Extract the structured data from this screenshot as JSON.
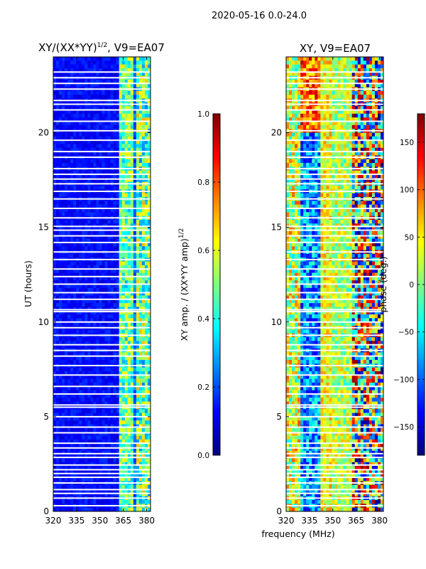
{
  "suptitle": "2020-05-16 0.0-24.0",
  "colors": {
    "jet": [
      "#00007f",
      "#0000ff",
      "#007fff",
      "#00ffff",
      "#7fff7f",
      "#ffff00",
      "#ff7f00",
      "#ff0000",
      "#7f0000"
    ],
    "blank_row": "#ffffff",
    "axis": "#000000"
  },
  "chart_data": [
    {
      "type": "heatmap",
      "title_main": "XY/(XX*YY)",
      "title_exp": "1/2",
      "title_rest": ", V9=EA07",
      "xlabel": "",
      "ylabel": "UT (hours)",
      "x": {
        "min": 320,
        "max": 382.5,
        "ticks": [
          320,
          335,
          350,
          365,
          380
        ],
        "tick_labels": [
          "320",
          "335",
          "350",
          "365",
          "380"
        ]
      },
      "y": {
        "min": 0,
        "max": 24,
        "ticks": [
          0,
          5,
          10,
          15,
          20
        ],
        "tick_labels": [
          "0",
          "5",
          "10",
          "15",
          "20"
        ]
      },
      "colorbar": {
        "label_main": "XY amp. / (XX*YY amp)",
        "label_exp": "1/2",
        "min": 0.0,
        "max": 1.0,
        "ticks": [
          0.0,
          0.2,
          0.4,
          0.6,
          0.8,
          1.0
        ],
        "tick_labels": [
          "0.0",
          "0.2",
          "0.4",
          "0.6",
          "0.8",
          "1.0"
        ]
      },
      "blank_hours": [
        0.3,
        0.7,
        0.95,
        1.15,
        1.5,
        1.8,
        2.0,
        2.2,
        2.45,
        2.85,
        3.05,
        3.35,
        3.6,
        4.15,
        4.45,
        5.0,
        5.5,
        5.62,
        6.2,
        6.6,
        7.2,
        7.7,
        8.2,
        8.5,
        8.8,
        9.3,
        9.7,
        10.0,
        10.55,
        10.65,
        11.2,
        11.55,
        12.0,
        12.4,
        12.8,
        13.3,
        13.7,
        14.2,
        14.55,
        14.85,
        15.05,
        15.5,
        16.0,
        16.5,
        16.9,
        17.3,
        17.55,
        17.8,
        18.1,
        18.7,
        19.0,
        19.6,
        20.1,
        20.6,
        21.2,
        21.5,
        21.7,
        22.3,
        22.6,
        22.9,
        23.2
      ]
    },
    {
      "type": "heatmap",
      "title": "XY, V9=EA07",
      "xlabel": "frequency (MHz)",
      "ylabel": "",
      "x": {
        "min": 320,
        "max": 382.5,
        "ticks": [
          320,
          335,
          350,
          365,
          380
        ],
        "tick_labels": [
          "320",
          "335",
          "350",
          "365",
          "380"
        ]
      },
      "y": {
        "min": 0,
        "max": 24,
        "ticks": [
          0,
          5,
          10,
          15,
          20
        ],
        "tick_labels": [
          "0",
          "5",
          "10",
          "15",
          "20"
        ]
      },
      "colorbar": {
        "label": "phase (deg.)",
        "min": -180,
        "max": 180,
        "ticks": [
          -150,
          -100,
          -50,
          0,
          50,
          100,
          150
        ],
        "tick_labels": [
          "−150",
          "−100",
          "−50",
          "0",
          "50",
          "100",
          "150"
        ]
      },
      "blank_hours": [
        0.3,
        0.7,
        0.95,
        1.15,
        1.5,
        1.8,
        2.0,
        2.2,
        2.45,
        2.85,
        3.05,
        3.35,
        3.6,
        4.15,
        4.45,
        5.0,
        5.5,
        5.62,
        6.2,
        6.6,
        7.2,
        7.7,
        8.2,
        8.5,
        8.8,
        9.3,
        9.7,
        10.0,
        10.55,
        10.65,
        11.2,
        11.55,
        12.0,
        12.4,
        12.8,
        13.3,
        13.7,
        14.2,
        14.55,
        14.85,
        15.05,
        15.5,
        16.0,
        16.5,
        16.9,
        17.3,
        17.55,
        17.8,
        18.1,
        18.7,
        19.0,
        19.6,
        20.1,
        20.6,
        21.2,
        21.5,
        21.7,
        22.3,
        22.6,
        22.9,
        23.2
      ]
    }
  ]
}
